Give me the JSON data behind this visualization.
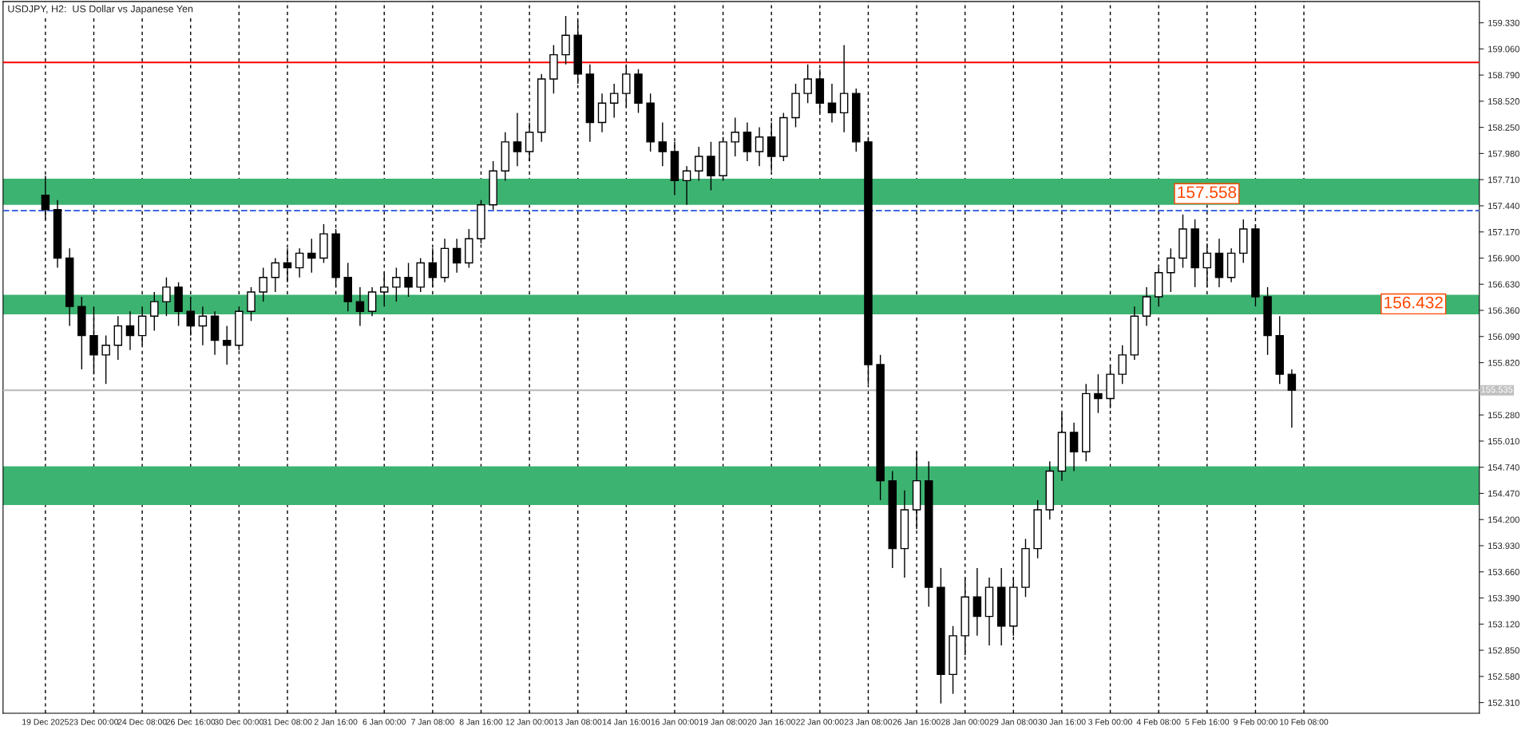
{
  "chart_data": {
    "type": "candlestick",
    "title": "USDJPY, H2:  US Dollar vs Japanese Yen",
    "categories": [
      "19 Dec 2025",
      null,
      null,
      null,
      "23 Dec 00:00",
      null,
      null,
      null,
      "24 Dec 08:00",
      null,
      null,
      null,
      "26 Dec 16:00",
      null,
      null,
      null,
      "30 Dec 00:00",
      null,
      null,
      null,
      "31 Dec 08:00",
      null,
      null,
      null,
      "2 Jan 16:00",
      null,
      null,
      null,
      "6 Jan 00:00",
      null,
      null,
      null,
      "7 Jan 08:00",
      null,
      null,
      null,
      "8 Jan 16:00",
      null,
      null,
      null,
      "12 Jan 00:00",
      null,
      null,
      null,
      "13 Jan 08:00",
      null,
      null,
      null,
      "14 Jan 16:00",
      null,
      null,
      null,
      "16 Jan 00:00",
      null,
      null,
      null,
      "19 Jan 08:00",
      null,
      null,
      null,
      "20 Jan 16:00",
      null,
      null,
      null,
      "22 Jan 00:00",
      null,
      null,
      null,
      "23 Jan 08:00",
      null,
      null,
      null,
      "26 Jan 16:00",
      null,
      null,
      null,
      "28 Jan 00:00",
      null,
      null,
      null,
      "29 Jan 08:00",
      null,
      null,
      null,
      "30 Jan 16:00",
      null,
      null,
      null,
      "3 Feb 00:00",
      null,
      null,
      null,
      "4 Feb 08:00",
      null,
      null,
      null,
      "5 Feb 16:00",
      null,
      null,
      null,
      "9 Feb 00:00",
      null,
      null,
      null,
      "10 Feb 08:00",
      null,
      null,
      null,
      null,
      null,
      null,
      null,
      null,
      null,
      null,
      null,
      null,
      null,
      null
    ],
    "ohlc": [
      [
        157.55,
        157.75,
        157.3,
        157.4
      ],
      [
        157.4,
        157.5,
        156.8,
        156.9
      ],
      [
        156.9,
        157.0,
        156.2,
        156.4
      ],
      [
        156.4,
        156.5,
        155.75,
        156.1
      ],
      [
        156.1,
        156.4,
        155.7,
        155.9
      ],
      [
        155.9,
        156.1,
        155.6,
        156.0
      ],
      [
        156.0,
        156.3,
        155.85,
        156.2
      ],
      [
        156.2,
        156.35,
        155.95,
        156.1
      ],
      [
        156.1,
        156.4,
        156.0,
        156.3
      ],
      [
        156.3,
        156.55,
        156.15,
        156.45
      ],
      [
        156.45,
        156.7,
        156.3,
        156.6
      ],
      [
        156.6,
        156.65,
        156.2,
        156.35
      ],
      [
        156.35,
        156.5,
        156.1,
        156.2
      ],
      [
        156.2,
        156.4,
        156.0,
        156.3
      ],
      [
        156.3,
        156.35,
        155.9,
        156.05
      ],
      [
        156.05,
        156.2,
        155.8,
        156.0
      ],
      [
        156.0,
        156.4,
        155.95,
        156.35
      ],
      [
        156.35,
        156.6,
        156.25,
        156.55
      ],
      [
        156.55,
        156.8,
        156.45,
        156.7
      ],
      [
        156.7,
        156.9,
        156.55,
        156.85
      ],
      [
        156.85,
        157.0,
        156.65,
        156.8
      ],
      [
        156.8,
        157.0,
        156.7,
        156.95
      ],
      [
        156.95,
        157.1,
        156.75,
        156.9
      ],
      [
        156.9,
        157.25,
        156.85,
        157.15
      ],
      [
        157.15,
        157.2,
        156.6,
        156.7
      ],
      [
        156.7,
        156.85,
        156.35,
        156.45
      ],
      [
        156.45,
        156.6,
        156.2,
        156.35
      ],
      [
        156.35,
        156.6,
        156.3,
        156.55
      ],
      [
        156.55,
        156.75,
        156.4,
        156.6
      ],
      [
        156.6,
        156.8,
        156.45,
        156.7
      ],
      [
        156.7,
        156.85,
        156.5,
        156.6
      ],
      [
        156.6,
        156.9,
        156.55,
        156.85
      ],
      [
        156.85,
        157.0,
        156.6,
        156.7
      ],
      [
        156.7,
        157.1,
        156.65,
        157.0
      ],
      [
        157.0,
        157.1,
        156.75,
        156.85
      ],
      [
        156.85,
        157.2,
        156.8,
        157.1
      ],
      [
        157.1,
        157.5,
        157.05,
        157.45
      ],
      [
        157.45,
        157.9,
        157.4,
        157.8
      ],
      [
        157.8,
        158.2,
        157.7,
        158.1
      ],
      [
        158.1,
        158.4,
        157.85,
        158.0
      ],
      [
        158.0,
        158.3,
        157.9,
        158.2
      ],
      [
        158.2,
        158.8,
        158.1,
        158.75
      ],
      [
        158.75,
        159.1,
        158.6,
        159.0
      ],
      [
        159.0,
        159.4,
        158.9,
        159.2
      ],
      [
        159.2,
        159.35,
        158.7,
        158.8
      ],
      [
        158.8,
        158.9,
        158.1,
        158.3
      ],
      [
        158.3,
        158.6,
        158.2,
        158.5
      ],
      [
        158.5,
        158.7,
        158.35,
        158.6
      ],
      [
        158.6,
        158.9,
        158.45,
        158.8
      ],
      [
        158.8,
        158.85,
        158.4,
        158.5
      ],
      [
        158.5,
        158.6,
        158.0,
        158.1
      ],
      [
        158.1,
        158.3,
        157.85,
        158.0
      ],
      [
        158.0,
        158.1,
        157.55,
        157.7
      ],
      [
        157.7,
        157.85,
        157.45,
        157.8
      ],
      [
        157.8,
        158.05,
        157.7,
        157.95
      ],
      [
        157.95,
        158.1,
        157.6,
        157.75
      ],
      [
        157.75,
        158.15,
        157.7,
        158.1
      ],
      [
        158.1,
        158.35,
        157.95,
        158.2
      ],
      [
        158.2,
        158.3,
        157.9,
        158.0
      ],
      [
        158.0,
        158.25,
        157.85,
        158.15
      ],
      [
        158.15,
        158.3,
        157.8,
        157.95
      ],
      [
        157.95,
        158.4,
        157.9,
        158.35
      ],
      [
        158.35,
        158.7,
        158.25,
        158.6
      ],
      [
        158.6,
        158.9,
        158.5,
        158.75
      ],
      [
        158.75,
        158.85,
        158.4,
        158.5
      ],
      [
        158.5,
        158.7,
        158.3,
        158.4
      ],
      [
        158.4,
        159.1,
        158.2,
        158.6
      ],
      [
        158.6,
        158.65,
        158.0,
        158.1
      ],
      [
        158.1,
        158.15,
        155.6,
        155.8
      ],
      [
        155.8,
        155.9,
        154.4,
        154.6
      ],
      [
        154.6,
        154.7,
        153.7,
        153.9
      ],
      [
        153.9,
        154.5,
        153.6,
        154.3
      ],
      [
        154.3,
        154.9,
        154.1,
        154.6
      ],
      [
        154.6,
        154.8,
        153.3,
        153.5
      ],
      [
        153.5,
        153.7,
        152.3,
        152.6
      ],
      [
        152.6,
        153.1,
        152.4,
        153.0
      ],
      [
        153.0,
        153.6,
        152.8,
        153.4
      ],
      [
        153.4,
        153.7,
        153.0,
        153.2
      ],
      [
        153.2,
        153.6,
        152.9,
        153.5
      ],
      [
        153.5,
        153.7,
        152.9,
        153.1
      ],
      [
        153.1,
        153.6,
        153.0,
        153.5
      ],
      [
        153.5,
        154.0,
        153.4,
        153.9
      ],
      [
        153.9,
        154.4,
        153.8,
        154.3
      ],
      [
        154.3,
        154.8,
        154.2,
        154.7
      ],
      [
        154.7,
        155.3,
        154.6,
        155.1
      ],
      [
        155.1,
        155.2,
        154.7,
        154.9
      ],
      [
        154.9,
        155.6,
        154.8,
        155.5
      ],
      [
        155.5,
        155.7,
        155.3,
        155.45
      ],
      [
        155.45,
        155.8,
        155.35,
        155.7
      ],
      [
        155.7,
        156.0,
        155.6,
        155.9
      ],
      [
        155.9,
        156.4,
        155.85,
        156.3
      ],
      [
        156.3,
        156.6,
        156.2,
        156.5
      ],
      [
        156.5,
        156.8,
        156.4,
        156.75
      ],
      [
        156.75,
        157.0,
        156.55,
        156.9
      ],
      [
        156.9,
        157.35,
        156.8,
        157.2
      ],
      [
        157.2,
        157.3,
        156.6,
        156.8
      ],
      [
        156.8,
        157.05,
        156.6,
        156.95
      ],
      [
        156.95,
        157.1,
        156.6,
        156.7
      ],
      [
        156.7,
        157.0,
        156.65,
        156.95
      ],
      [
        156.95,
        157.3,
        156.85,
        157.2
      ],
      [
        157.2,
        157.25,
        156.4,
        156.5
      ],
      [
        156.5,
        156.6,
        155.9,
        156.1
      ],
      [
        156.1,
        156.3,
        155.6,
        155.7
      ],
      [
        155.7,
        155.75,
        155.15,
        155.535
      ],
      null,
      null,
      null,
      null,
      null,
      null,
      null,
      null,
      null,
      null,
      null,
      null,
      null,
      null,
      null
    ],
    "ylim": [
      152.2,
      159.55
    ],
    "yticks": [
      {
        "value": 152.31,
        "label": "152.310"
      },
      {
        "value": 152.58,
        "label": "152.580"
      },
      {
        "value": 152.85,
        "label": "152.850"
      },
      {
        "value": 153.12,
        "label": "153.120"
      },
      {
        "value": 153.39,
        "label": "153.390"
      },
      {
        "value": 153.66,
        "label": "153.660"
      },
      {
        "value": 153.93,
        "label": "153.930"
      },
      {
        "value": 154.2,
        "label": "154.200"
      },
      {
        "value": 154.47,
        "label": "154.470"
      },
      {
        "value": 154.74,
        "label": "154.740"
      },
      {
        "value": 155.01,
        "label": "155.010"
      },
      {
        "value": 155.28,
        "label": "155.280"
      },
      {
        "value": 155.82,
        "label": "155.820"
      },
      {
        "value": 156.09,
        "label": "156.090"
      },
      {
        "value": 156.36,
        "label": "156.360"
      },
      {
        "value": 156.63,
        "label": "156.630"
      },
      {
        "value": 156.9,
        "label": "156.900"
      },
      {
        "value": 157.17,
        "label": "157.170"
      },
      {
        "value": 157.44,
        "label": "157.440"
      },
      {
        "value": 157.71,
        "label": "157.710"
      },
      {
        "value": 157.98,
        "label": "157.980"
      },
      {
        "value": 158.25,
        "label": "158.250"
      },
      {
        "value": 158.52,
        "label": "158.520"
      },
      {
        "value": 158.79,
        "label": "158.790"
      },
      {
        "value": 159.06,
        "label": "159.060"
      },
      {
        "value": 159.33,
        "label": "159.330"
      }
    ],
    "grid": "x",
    "bands": [
      {
        "axis": "y",
        "from": 157.45,
        "to": 157.72,
        "color": "#3cb371"
      },
      {
        "axis": "y",
        "from": 156.32,
        "to": 156.52,
        "color": "#3cb371"
      },
      {
        "axis": "y",
        "from": 154.35,
        "to": 154.75,
        "color": "#3cb371"
      }
    ],
    "ref_lines": [
      {
        "axis": "y",
        "value": 158.92,
        "color": "#ff0000",
        "line_style": "solid"
      },
      {
        "axis": "y",
        "value": 157.39,
        "color": "#4169e1",
        "line_style": "dashed"
      },
      {
        "axis": "y",
        "value": 155.535,
        "label": "155.535",
        "color": "#c0c0c0",
        "line_style": "solid"
      }
    ],
    "annotations": [
      "157.558",
      "156.432"
    ]
  }
}
